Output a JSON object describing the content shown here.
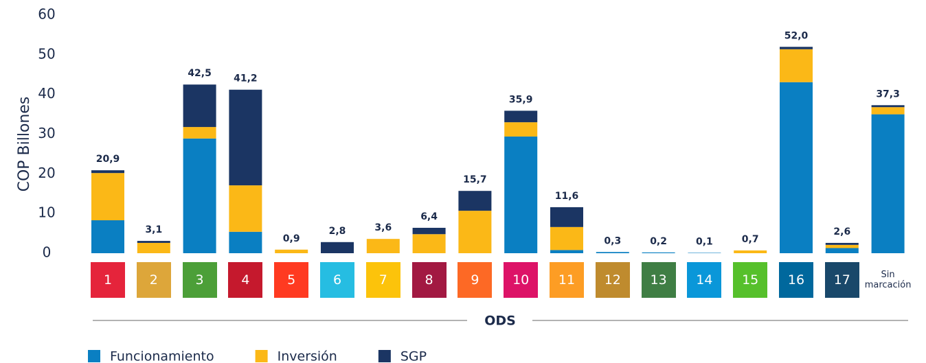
{
  "chart_data": {
    "type": "stacked_bar",
    "ylabel": "COP Billones",
    "xlabel": "ODS",
    "categories": [
      "1",
      "2",
      "3",
      "4",
      "5",
      "6",
      "7",
      "8",
      "9",
      "10",
      "11",
      "12",
      "13",
      "14",
      "15",
      "16",
      "17",
      "Sin marcación"
    ],
    "category_colors": [
      "#e5243b",
      "#dda63a",
      "#4c9f38",
      "#c5192d",
      "#ff3a21",
      "#26bde2",
      "#fcc30b",
      "#a21942",
      "#fd6925",
      "#dd1367",
      "#fd9d24",
      "#bf8b2e",
      "#3f7e44",
      "#0a97d9",
      "#56c02b",
      "#00689d",
      "#19486a",
      null
    ],
    "series": [
      {
        "name": "Funcionamiento",
        "color": "#0a7fc2",
        "values": [
          8.3,
          0,
          28.9,
          5.4,
          0,
          0,
          0,
          0,
          0,
          29.4,
          0.8,
          0.3,
          0.2,
          0.1,
          0,
          43.1,
          1.3,
          35.0
        ]
      },
      {
        "name": "Inversión",
        "color": "#fbb817",
        "values": [
          11.9,
          2.6,
          2.9,
          11.7,
          0.9,
          0,
          3.6,
          4.8,
          10.7,
          3.6,
          5.8,
          0,
          0,
          0,
          0.7,
          8.3,
          0.8,
          1.8
        ]
      },
      {
        "name": "SGP",
        "color": "#1b3563",
        "values": [
          0.7,
          0.5,
          10.7,
          24.1,
          0,
          2.8,
          0,
          1.6,
          5.0,
          2.9,
          5.0,
          0,
          0,
          0,
          0,
          0.6,
          0.5,
          0.5
        ]
      }
    ],
    "totals": [
      20.9,
      3.1,
      42.5,
      41.2,
      0.9,
      2.8,
      3.6,
      6.4,
      15.7,
      35.9,
      11.6,
      0.3,
      0.2,
      0.1,
      0.7,
      52.0,
      2.6,
      37.3
    ],
    "total_labels": [
      "20,9",
      "3,1",
      "42,5",
      "41,2",
      "0,9",
      "2,8",
      "3,6",
      "6,4",
      "15,7",
      "35,9",
      "11,6",
      "0,3",
      "0,2",
      "0,1",
      "0,7",
      "52,0",
      "2,6",
      "37,3"
    ],
    "ylim": [
      0,
      60
    ],
    "yticks": [
      0,
      10,
      20,
      30,
      40,
      50,
      60
    ],
    "grid": false,
    "legend": "bottom-left"
  }
}
